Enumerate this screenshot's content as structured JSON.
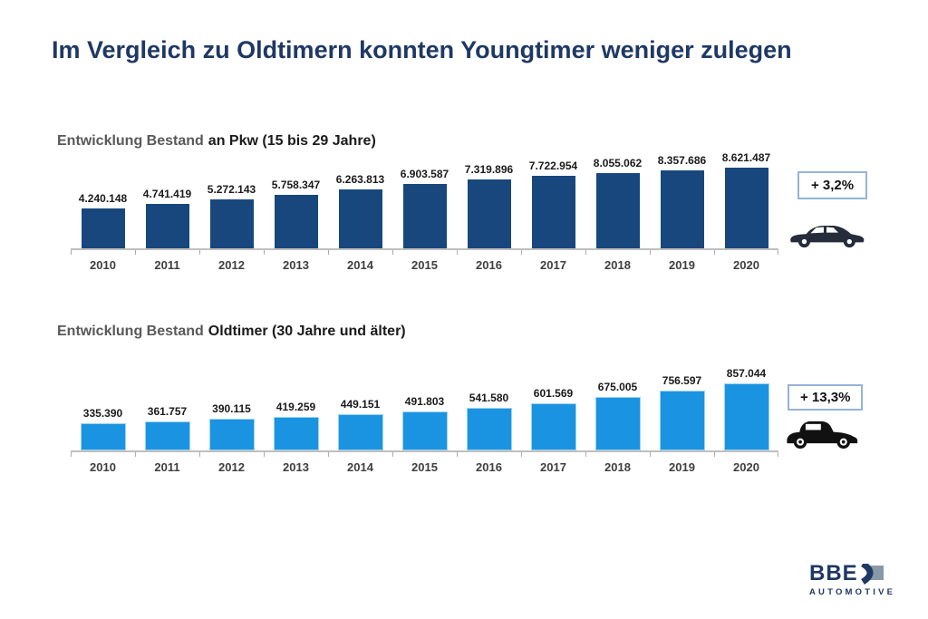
{
  "page": {
    "title": "Im Vergleich zu Oldtimern konnten Youngtimer weniger zulegen"
  },
  "colors": {
    "title_navy": "#1F3864",
    "heading_gray": "#595959",
    "heading_dark": "#1A1A1A",
    "bar_dark_blue": "#17477D",
    "bar_light_blue": "#1A94E0",
    "axis_gray": "#BFBFBF",
    "year_label_gray": "#3F3F3F",
    "badge_border_blue": "#95B3D7",
    "sedan_icon_navy": "#252C3A",
    "classic_icon_black": "#111111",
    "logo_navy": "#1F3864",
    "logo_gray": "#8A99A8"
  },
  "chart_data": [
    {
      "type": "bar",
      "title_prefix": "Entwicklung Bestand",
      "title_main": "an Pkw (15 bis 29 Jahre)",
      "categories": [
        "2010",
        "2011",
        "2012",
        "2013",
        "2014",
        "2015",
        "2016",
        "2017",
        "2018",
        "2019",
        "2020"
      ],
      "values": [
        4240148,
        4741419,
        5272143,
        5758347,
        6263813,
        6903587,
        7319896,
        7722954,
        8055062,
        8357686,
        8621487
      ],
      "value_labels": [
        "4.240.148",
        "4.741.419",
        "5.272.143",
        "5.758.347",
        "6.263.813",
        "6.903.587",
        "7.319.896",
        "7.722.954",
        "8.055.062",
        "8.357.686",
        "8.621.487"
      ],
      "badge": "+ 3,2%",
      "icon": "sedan-car-icon",
      "bar_color": "#17477D",
      "bar_style": "dark",
      "xlabel": "",
      "ylabel": "",
      "ylim": [
        0,
        8621487
      ],
      "grid": false,
      "legend": "none"
    },
    {
      "type": "bar",
      "title_prefix": "Entwicklung Bestand",
      "title_main": "Oldtimer (30 Jahre und älter)",
      "categories": [
        "2010",
        "2011",
        "2012",
        "2013",
        "2014",
        "2015",
        "2016",
        "2017",
        "2018",
        "2019",
        "2020"
      ],
      "values": [
        335390,
        361757,
        390115,
        419259,
        449151,
        491803,
        541580,
        601569,
        675005,
        756597,
        857044
      ],
      "value_labels": [
        "335.390",
        "361.757",
        "390.115",
        "419.259",
        "449.151",
        "491.803",
        "541.580",
        "601.569",
        "675.005",
        "756.597",
        "857.044"
      ],
      "badge": "+ 13,3%",
      "icon": "classic-car-icon",
      "bar_color": "#1A94E0",
      "bar_style": "light",
      "xlabel": "",
      "ylabel": "",
      "ylim": [
        0,
        857044
      ],
      "grid": false,
      "legend": "none"
    }
  ],
  "footer": {
    "logo_text": "BBE",
    "logo_subtext": "AUTOMOTIVE"
  }
}
